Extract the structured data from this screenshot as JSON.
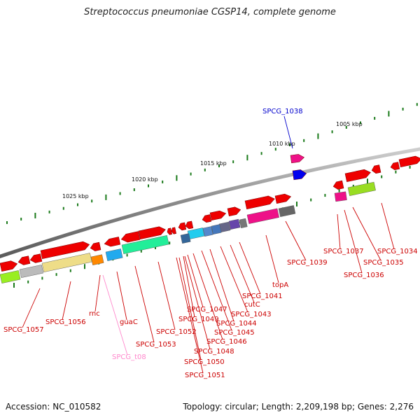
{
  "title": "Streptococcus pneumoniae CGSP14, complete genome",
  "footer": {
    "accession": "Accession: NC_010582",
    "topology": "Topology: circular; Length: 2,209,198 bp; Genes: 2,276"
  },
  "colors": {
    "gene_label": "#cc0000",
    "highlight_label": "#0000cc",
    "trna_label": "#ff88cc",
    "backbone": "#7a7a7a",
    "tick": "#1a7a1a"
  },
  "ticks": [
    {
      "label": "1005 kbp"
    },
    {
      "label": "1010 kbp"
    },
    {
      "label": "1015 kbp"
    },
    {
      "label": "1020 kbp"
    },
    {
      "label": "1025 kbp"
    }
  ],
  "gene_labels": [
    {
      "text": "SPCG_1038",
      "color": "blue"
    },
    {
      "text": "SPCG_1034",
      "color": "red"
    },
    {
      "text": "SPCG_1037",
      "color": "red"
    },
    {
      "text": "SPCG_1035",
      "color": "red"
    },
    {
      "text": "SPCG_1036",
      "color": "red"
    },
    {
      "text": "SPCG_1039",
      "color": "red"
    },
    {
      "text": "topA",
      "color": "red"
    },
    {
      "text": "SPCG_1041",
      "color": "red"
    },
    {
      "text": "cutC",
      "color": "red"
    },
    {
      "text": "SPCG_1043",
      "color": "red"
    },
    {
      "text": "SPCG_1044",
      "color": "red"
    },
    {
      "text": "SPCG_1045",
      "color": "red"
    },
    {
      "text": "SPCG_1046",
      "color": "red"
    },
    {
      "text": "SPCG_1047",
      "color": "red"
    },
    {
      "text": "SPCG_1049",
      "color": "red"
    },
    {
      "text": "SPCG_1048",
      "color": "red"
    },
    {
      "text": "SPCG_1050",
      "color": "red"
    },
    {
      "text": "SPCG_1051",
      "color": "red"
    },
    {
      "text": "SPCG_1052",
      "color": "red"
    },
    {
      "text": "SPCG_1053",
      "color": "red"
    },
    {
      "text": "guaC",
      "color": "red"
    },
    {
      "text": "rnc",
      "color": "red"
    },
    {
      "text": "SPCG_t08",
      "color": "pink"
    },
    {
      "text": "SPCG_1056",
      "color": "red"
    },
    {
      "text": "SPCG_1057",
      "color": "red"
    }
  ]
}
